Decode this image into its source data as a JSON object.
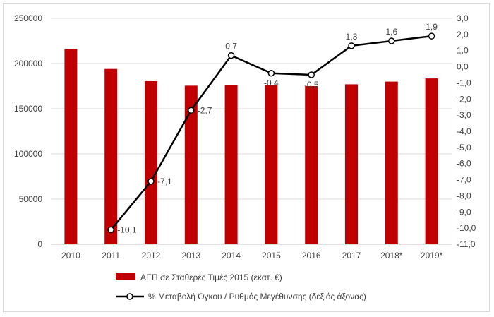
{
  "chart_data": {
    "type": "bar",
    "categories": [
      "2010",
      "2011",
      "2012",
      "2013",
      "2014",
      "2015",
      "2016",
      "2017",
      "2018*",
      "2019*"
    ],
    "series": [
      {
        "name": "ΑΕΠ σε Σταθερές Τιμές 2015 (εκατ. €)",
        "type": "bar",
        "axis": "left",
        "color": "#c00000",
        "values": [
          216000,
          194000,
          180500,
          175500,
          176500,
          176500,
          175000,
          177000,
          180000,
          183500
        ]
      },
      {
        "name": "% Μεταβολή Όγκου / Ρυθμός Μεγέθυνσης (δεξιός άξονας)",
        "type": "line",
        "axis": "right",
        "color": "#000000",
        "values": [
          null,
          -10.1,
          -7.1,
          -2.7,
          0.7,
          -0.4,
          -0.5,
          1.3,
          1.6,
          1.9
        ],
        "labels": [
          "",
          "-10,1",
          "-7,1",
          "-2,7",
          "0,7",
          "-0,4",
          "-0,5",
          "1,3",
          "1,6",
          "1,9"
        ]
      }
    ],
    "y_left": {
      "range": [
        0,
        250000
      ],
      "ticks": [
        0,
        50000,
        100000,
        150000,
        200000,
        250000
      ],
      "tick_labels": [
        "0",
        "50000",
        "100000",
        "150000",
        "200000",
        "250000"
      ]
    },
    "y_right": {
      "range": [
        -11,
        3
      ],
      "ticks": [
        3,
        2,
        1,
        0,
        -1,
        -2,
        -3,
        -4,
        -5,
        -6,
        -7,
        -8,
        -9,
        -10,
        -11
      ],
      "tick_labels": [
        "3,0",
        "2,0",
        "1,0",
        "0,0",
        "-1,0",
        "-2,0",
        "-3,0",
        "-4,0",
        "-5,0",
        "-6,0",
        "-7,0",
        "-8,0",
        "-9,0",
        "-10,0",
        "-11,0"
      ]
    },
    "grid": true,
    "legend_position": "bottom"
  }
}
